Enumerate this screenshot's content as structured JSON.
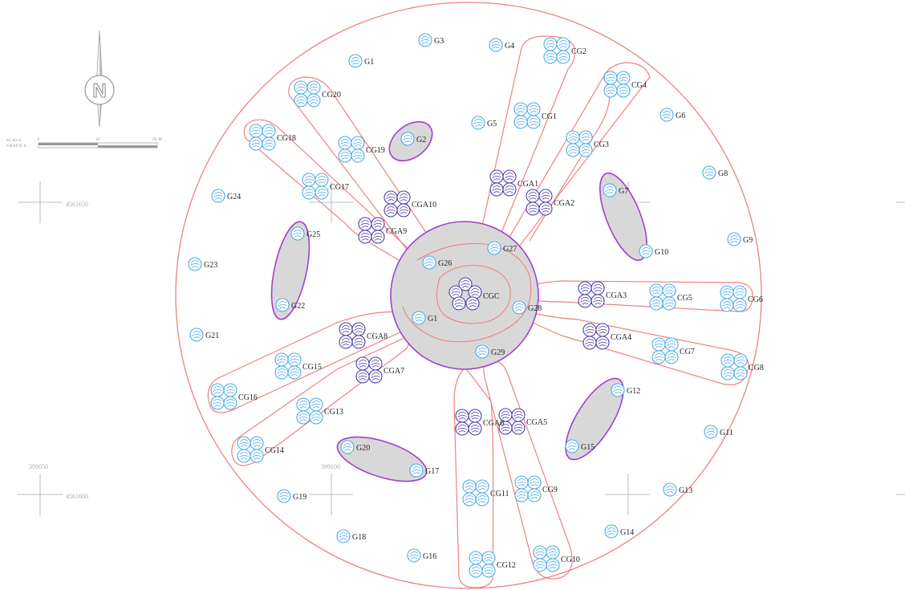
{
  "colors": {
    "outline": "#f08080",
    "purple": "#a040d0",
    "gray_fill": "#d8d8d8",
    "tree_blue": "#49a9e6",
    "tree_navy": "#4a3aaa",
    "label": "#222222",
    "grid": "#aaaaaa"
  },
  "north_arrow": {
    "letter": "N"
  },
  "scale_bar": {
    "title_line1": "SCALA",
    "title_line2": "GRAFICA",
    "ticks": [
      "0",
      "10",
      "20 M"
    ]
  },
  "coordinates": {
    "north_1": "4561650",
    "north_2": "4561600",
    "east_1": "399050",
    "east_2": "399100"
  },
  "labels": {
    "G1": "G1",
    "G2": "G2",
    "G3": "G3",
    "G4": "G4",
    "G5": "G5",
    "G6": "G6",
    "G7": "G7",
    "G8": "G8",
    "G9": "G9",
    "G10": "G10",
    "G11": "G11",
    "G12": "G12",
    "G13": "G13",
    "G14": "G14",
    "G15": "G15",
    "G16": "G16",
    "G17": "G17",
    "G18": "G18",
    "G19": "G19",
    "G20": "G20",
    "G21": "G21",
    "G22": "G22",
    "G23": "G23",
    "G24": "G24",
    "G25": "G25",
    "G26": "G26",
    "G27": "G27",
    "G28": "G28",
    "G29": "G29",
    "G1c": "G1",
    "CG1": "CG1",
    "CG2": "CG2",
    "CG3": "CG3",
    "CG4": "CG4",
    "CG5": "CG5",
    "CG6": "CG6",
    "CG7": "CG7",
    "CG8": "CG8",
    "CG9": "CG9",
    "CG10": "CG10",
    "CG11": "CG11",
    "CG12": "CG12",
    "CG13": "CG13",
    "CG14": "CG14",
    "CG15": "CG15",
    "CG16": "CG16",
    "CG17": "CG17",
    "CG18": "CG18",
    "CG19": "CG19",
    "CG20": "CG20",
    "CGA1": "CGA1",
    "CGA2": "CGA2",
    "CGA3": "CGA3",
    "CGA4": "CGA4",
    "CGA5": "CGA5",
    "CGA6": "CGA6",
    "CGA7": "CGA7",
    "CGA8": "CGA8",
    "CGA9": "CGA9",
    "CGA10": "CGA10",
    "CGC": "CGC"
  }
}
